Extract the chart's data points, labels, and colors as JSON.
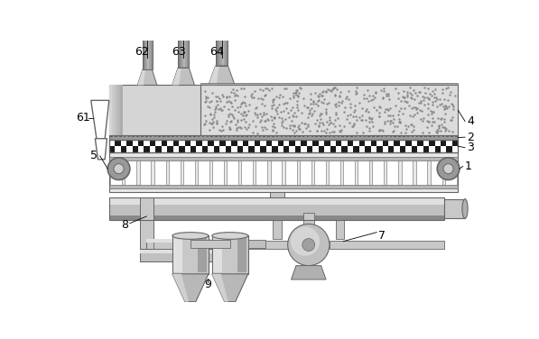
{
  "bg_color": "#ffffff",
  "line_color": "#666666",
  "checker_dark": "#1a1a1a",
  "checker_light": "#ffffff",
  "gray1": "#e0e0e0",
  "gray2": "#c8c8c8",
  "gray3": "#b0b0b0",
  "gray4": "#909090",
  "gray5": "#d8d8d8",
  "figsize": [
    5.97,
    3.76
  ],
  "dpi": 100
}
